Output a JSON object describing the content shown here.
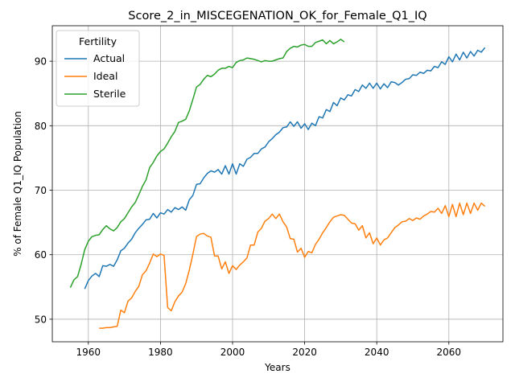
{
  "chart_data": {
    "type": "line",
    "title": "Score_2_in_MISCEGENATION_OK_for_Female_Q1_IQ",
    "xlabel": "Years",
    "ylabel": "% of Female Q1_IQ Population",
    "xlim": [
      1950,
      2075
    ],
    "ylim": [
      46.5,
      95.5
    ],
    "xticks": [
      1960,
      1980,
      2000,
      2020,
      2040,
      2060
    ],
    "yticks": [
      50,
      60,
      70,
      80,
      90
    ],
    "grid": true,
    "legend": {
      "title": "Fertility",
      "placement": "top-left"
    },
    "series": [
      {
        "name": "Actual",
        "color": "#1f77b4",
        "x": [
          1959,
          1960,
          1961,
          1962,
          1963,
          1964,
          1965,
          1966,
          1967,
          1968,
          1969,
          1970,
          1971,
          1972,
          1973,
          1974,
          1975,
          1976,
          1977,
          1978,
          1979,
          1980,
          1981,
          1982,
          1983,
          1984,
          1985,
          1986,
          1987,
          1988,
          1989,
          1990,
          1991,
          1992,
          1993,
          1994,
          1995,
          1996,
          1997,
          1998,
          1999,
          2000,
          2001,
          2002,
          2003,
          2004,
          2005,
          2006,
          2007,
          2008,
          2009,
          2010,
          2011,
          2012,
          2013,
          2014,
          2015,
          2016,
          2017,
          2018,
          2019,
          2020,
          2021,
          2022,
          2023,
          2024,
          2025,
          2026,
          2027,
          2028,
          2029,
          2030,
          2031,
          2032,
          2033,
          2034,
          2035,
          2036,
          2037,
          2038,
          2039,
          2040,
          2041,
          2042,
          2043,
          2044,
          2045,
          2046,
          2047,
          2048,
          2049,
          2050,
          2051,
          2052,
          2053,
          2054,
          2055,
          2056,
          2057,
          2058,
          2059,
          2060,
          2061,
          2062,
          2063,
          2064,
          2065,
          2066,
          2067,
          2068,
          2069,
          2070
        ],
        "y": [
          54.7,
          56.0,
          56.7,
          57.1,
          56.6,
          58.3,
          58.2,
          58.5,
          58.2,
          59.2,
          60.6,
          61.0,
          61.8,
          62.4,
          63.4,
          64.1,
          64.7,
          65.4,
          65.5,
          66.4,
          65.7,
          66.5,
          66.3,
          67.0,
          66.6,
          67.3,
          67.0,
          67.4,
          66.9,
          68.5,
          69.2,
          70.9,
          71.0,
          71.9,
          72.6,
          73.0,
          72.8,
          73.2,
          72.5,
          73.8,
          72.5,
          74.1,
          72.5,
          74.1,
          73.7,
          74.8,
          75.1,
          75.7,
          75.7,
          76.4,
          76.7,
          77.5,
          78.0,
          78.6,
          79.0,
          79.7,
          79.8,
          80.6,
          79.9,
          80.6,
          79.6,
          80.3,
          79.4,
          80.4,
          80.0,
          81.4,
          81.2,
          82.5,
          82.2,
          83.6,
          83.1,
          84.3,
          84.0,
          84.8,
          84.6,
          85.6,
          85.3,
          86.3,
          85.8,
          86.6,
          85.8,
          86.6,
          85.7,
          86.5,
          85.9,
          86.8,
          86.7,
          86.3,
          86.7,
          87.2,
          87.3,
          87.9,
          87.8,
          88.3,
          88.1,
          88.6,
          88.5,
          89.2,
          89.0,
          89.9,
          89.5,
          90.7,
          89.9,
          91.1,
          90.2,
          91.4,
          90.5,
          91.5,
          90.8,
          91.7,
          91.4,
          92.1
        ]
      },
      {
        "name": "Ideal",
        "color": "#ff7f0e",
        "x": [
          1963,
          1964,
          1965,
          1966,
          1967,
          1968,
          1969,
          1970,
          1971,
          1972,
          1973,
          1974,
          1975,
          1976,
          1977,
          1978,
          1979,
          1980,
          1981,
          1982,
          1983,
          1984,
          1985,
          1986,
          1987,
          1988,
          1989,
          1990,
          1991,
          1992,
          1993,
          1994,
          1995,
          1996,
          1997,
          1998,
          1999,
          2000,
          2001,
          2002,
          2003,
          2004,
          2005,
          2006,
          2007,
          2008,
          2009,
          2010,
          2011,
          2012,
          2013,
          2014,
          2015,
          2016,
          2017,
          2018,
          2019,
          2020,
          2021,
          2022,
          2023,
          2024,
          2025,
          2026,
          2027,
          2028,
          2029,
          2030,
          2031,
          2032,
          2033,
          2034,
          2035,
          2036,
          2037,
          2038,
          2039,
          2040,
          2041,
          2042,
          2043,
          2044,
          2045,
          2046,
          2047,
          2048,
          2049,
          2050,
          2051,
          2052,
          2053,
          2054,
          2055,
          2056,
          2057,
          2058,
          2059,
          2060,
          2061,
          2062,
          2063,
          2064,
          2065,
          2066,
          2067,
          2068,
          2069,
          2070
        ],
        "y": [
          48.6,
          48.6,
          48.7,
          48.7,
          48.8,
          48.9,
          51.4,
          51.0,
          52.8,
          53.3,
          54.3,
          55.1,
          56.9,
          57.5,
          58.7,
          60.1,
          59.7,
          60.1,
          59.9,
          51.8,
          51.3,
          52.7,
          53.6,
          54.2,
          55.5,
          57.6,
          60.1,
          62.8,
          63.2,
          63.3,
          62.9,
          62.7,
          59.8,
          59.8,
          57.8,
          58.9,
          57.1,
          58.3,
          57.7,
          58.4,
          58.9,
          59.5,
          61.5,
          61.5,
          63.5,
          64.1,
          65.2,
          65.6,
          66.3,
          65.6,
          66.3,
          65.1,
          64.3,
          62.5,
          62.4,
          60.4,
          61.0,
          59.6,
          60.5,
          60.3,
          61.6,
          62.4,
          63.4,
          64.2,
          65.1,
          65.8,
          66.0,
          66.2,
          66.1,
          65.5,
          64.9,
          64.8,
          63.8,
          64.5,
          62.6,
          63.4,
          61.7,
          62.6,
          61.5,
          62.3,
          62.6,
          63.4,
          64.2,
          64.6,
          65.1,
          65.2,
          65.6,
          65.3,
          65.7,
          65.5,
          66.0,
          66.3,
          66.7,
          66.6,
          67.2,
          66.4,
          67.6,
          65.9,
          67.8,
          65.9,
          68.0,
          66.2,
          68.0,
          66.4,
          68.0,
          66.9,
          68.0,
          67.5
        ]
      },
      {
        "name": "Sterile",
        "color": "#2ca02c",
        "x": [
          1955,
          1956,
          1957,
          1958,
          1959,
          1960,
          1961,
          1962,
          1963,
          1964,
          1965,
          1966,
          1967,
          1968,
          1969,
          1970,
          1971,
          1972,
          1973,
          1974,
          1975,
          1976,
          1977,
          1978,
          1979,
          1980,
          1981,
          1982,
          1983,
          1984,
          1985,
          1986,
          1987,
          1988,
          1989,
          1990,
          1991,
          1992,
          1993,
          1994,
          1995,
          1996,
          1997,
          1998,
          1999,
          2000,
          2001,
          2002,
          2003,
          2004,
          2005,
          2006,
          2007,
          2008,
          2009,
          2010,
          2011,
          2012,
          2013,
          2014,
          2015,
          2016,
          2017,
          2018,
          2019,
          2020,
          2021,
          2022,
          2023,
          2024,
          2025,
          2026,
          2027,
          2028,
          2029,
          2030,
          2031
        ],
        "y": [
          54.9,
          56.1,
          56.6,
          58.5,
          60.8,
          62.1,
          62.8,
          63.0,
          63.1,
          63.9,
          64.5,
          64.0,
          63.7,
          64.2,
          65.1,
          65.6,
          66.5,
          67.4,
          68.1,
          69.3,
          70.6,
          71.6,
          73.5,
          74.3,
          75.3,
          76.0,
          76.4,
          77.3,
          78.3,
          79.1,
          80.5,
          80.7,
          81.0,
          82.3,
          84.1,
          86.0,
          86.4,
          87.2,
          87.8,
          87.6,
          88.0,
          88.6,
          88.9,
          88.9,
          89.2,
          89.0,
          89.8,
          90.1,
          90.2,
          90.5,
          90.4,
          90.3,
          90.1,
          89.9,
          90.1,
          90.0,
          90.0,
          90.2,
          90.4,
          90.5,
          91.5,
          92.0,
          92.3,
          92.2,
          92.5,
          92.6,
          92.3,
          92.3,
          92.9,
          93.1,
          93.3,
          92.7,
          93.2,
          92.7,
          93.0,
          93.4,
          93.0
        ]
      }
    ]
  }
}
